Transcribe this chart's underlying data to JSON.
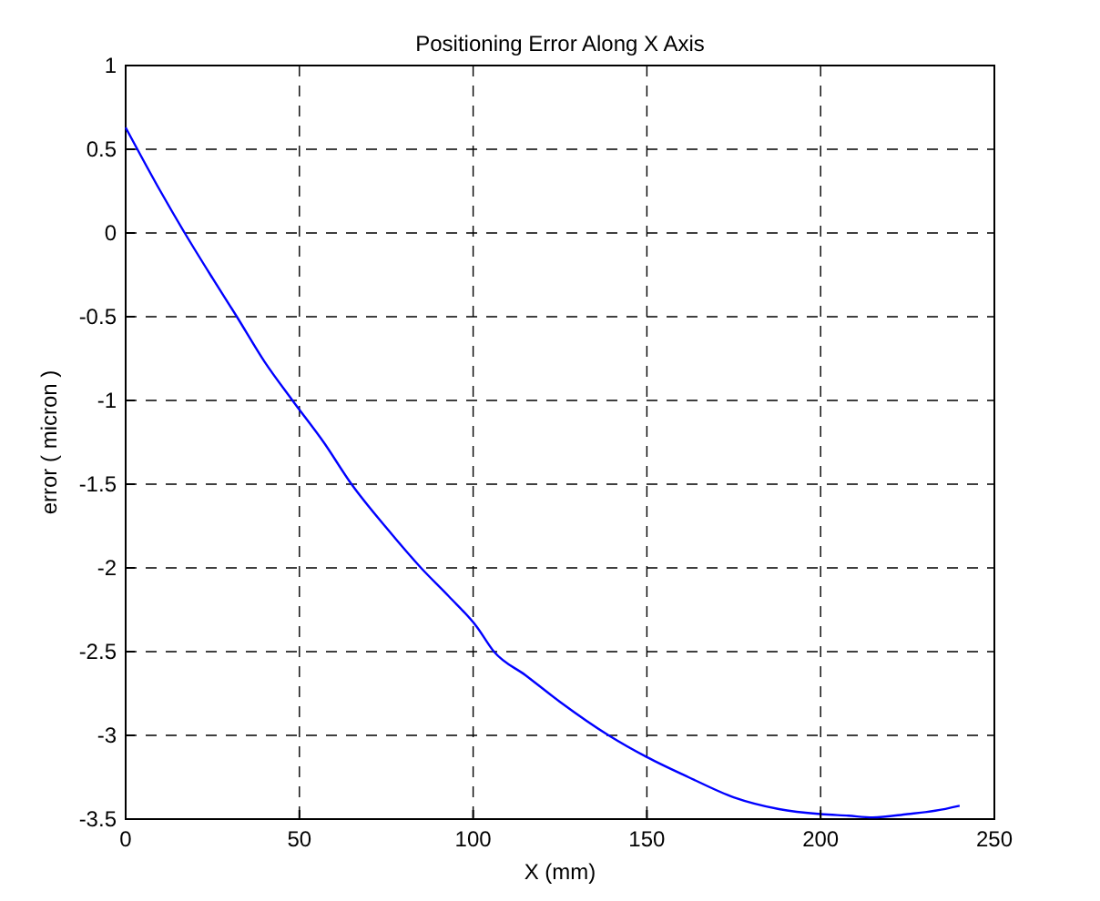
{
  "chart_data": {
    "type": "line",
    "title": "Positioning Error  Along X Axis",
    "xlabel": "X (mm)",
    "ylabel": "error ( micron )",
    "x": [
      0,
      10,
      17,
      25,
      32,
      40,
      48,
      57,
      65,
      75,
      85,
      93,
      101,
      106,
      115,
      125,
      139,
      150,
      162,
      175,
      188,
      200,
      208,
      215,
      225,
      233,
      240
    ],
    "series": [
      {
        "color": "#0000ff",
        "values": [
          0.63,
          0.25,
          0,
          -0.27,
          -0.5,
          -0.77,
          -1,
          -1.25,
          -1.5,
          -1.76,
          -2,
          -2.17,
          -2.35,
          -2.5,
          -2.64,
          -2.8,
          -3,
          -3.13,
          -3.25,
          -3.37,
          -3.44,
          -3.47,
          -3.48,
          -3.49,
          -3.47,
          -3.45,
          -3.42
        ]
      }
    ],
    "xlim": [
      0,
      250
    ],
    "xticks": [
      0,
      50,
      100,
      150,
      200,
      250
    ],
    "ylim": [
      -3.5,
      1
    ],
    "yticks": [
      -3.5,
      -3,
      -2.5,
      -2,
      -1.5,
      -1,
      -0.5,
      0,
      0.5,
      1
    ],
    "grid": true,
    "line_style": "solid",
    "marker": "none"
  }
}
